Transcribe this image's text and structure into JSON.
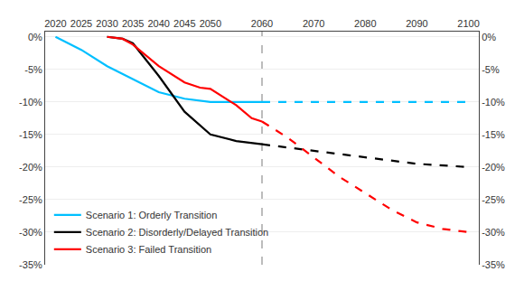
{
  "chart_data": {
    "type": "line",
    "xlim": [
      2018,
      2102
    ],
    "xticks": [
      2020,
      2025,
      2030,
      2035,
      2040,
      2045,
      2050,
      {
        "value": 2055,
        "label": null
      },
      2060,
      {
        "value": 2065,
        "label": null
      },
      2070,
      {
        "value": 2075,
        "label": null
      },
      2080,
      {
        "value": 2085,
        "label": null
      },
      2090,
      {
        "value": 2095,
        "label": null
      },
      2100
    ],
    "ylim": [
      -35,
      0.8
    ],
    "yticks": [
      {
        "value": 0,
        "label": "0%"
      },
      {
        "value": -5,
        "label": "-5%"
      },
      {
        "value": -10,
        "label": "-10%"
      },
      {
        "value": -15,
        "label": "-15%"
      },
      {
        "value": -20,
        "label": "-20%"
      },
      {
        "value": -25,
        "label": "-25%"
      },
      {
        "value": -30,
        "label": "-30%"
      },
      {
        "value": -35,
        "label": "-35%"
      }
    ],
    "y2lim": [
      -35,
      0.8
    ],
    "y2ticks": [
      {
        "value": 0,
        "label": "0%"
      },
      {
        "value": -5,
        "label": "-5%"
      },
      {
        "value": -10,
        "label": "-10%"
      },
      {
        "value": -15,
        "label": "-15%"
      },
      {
        "value": -20,
        "label": "-20%"
      },
      {
        "value": -25,
        "label": "-25%"
      },
      {
        "value": -30,
        "label": "-30%"
      },
      {
        "value": -35,
        "label": "-35%"
      }
    ],
    "grid": "y",
    "legend": "lower left",
    "series": [
      {
        "name": "Scenario 1: Orderly Transition",
        "color": "#00BFFF",
        "line_style": "solid",
        "x": [
          2020,
          2025,
          2030,
          2035,
          2040,
          2045,
          2050,
          2055,
          2060
        ],
        "values": [
          0,
          -2.0,
          -4.5,
          -6.5,
          -8.5,
          -9.5,
          -10.0,
          -10.0,
          -10.0
        ]
      },
      {
        "color": "#00BFFF",
        "line_style": "dashed",
        "x": [
          2060,
          2070,
          2080,
          2090,
          2100
        ],
        "values": [
          -10.0,
          -10.0,
          -10.0,
          -10.0,
          -10.0
        ]
      },
      {
        "name": "Scenario 2: Disorderly/Delayed Transition",
        "color": "#000000",
        "line_style": "solid",
        "x": [
          2030,
          2033,
          2035,
          2040,
          2045,
          2050,
          2055,
          2060
        ],
        "values": [
          0,
          -0.3,
          -1.0,
          -6.0,
          -11.5,
          -15.0,
          -16.0,
          -16.5
        ]
      },
      {
        "color": "#000000",
        "line_style": "dashed",
        "x": [
          2060,
          2070,
          2080,
          2090,
          2100
        ],
        "values": [
          -16.5,
          -17.5,
          -18.5,
          -19.5,
          -20.0
        ]
      },
      {
        "name": "Scenario 3: Failed Transition",
        "color": "#FF0000",
        "line_style": "solid",
        "x": [
          2030,
          2033,
          2035,
          2040,
          2045,
          2048,
          2050,
          2052,
          2055,
          2058,
          2060
        ],
        "values": [
          0,
          -0.3,
          -1.2,
          -4.5,
          -7.0,
          -7.8,
          -8.0,
          -9.0,
          -10.5,
          -12.5,
          -13.0
        ]
      },
      {
        "color": "#FF0000",
        "line_style": "dashed",
        "x": [
          2060,
          2065,
          2070,
          2075,
          2080,
          2085,
          2090,
          2095,
          2100
        ],
        "values": [
          -13.0,
          -15.5,
          -18.5,
          -21.5,
          -24.0,
          -26.5,
          -28.5,
          -29.5,
          -30.0
        ]
      },
      {
        "type": "vline",
        "color": "#909090",
        "line_style": "dashed",
        "x": [
          2060
        ]
      }
    ]
  }
}
